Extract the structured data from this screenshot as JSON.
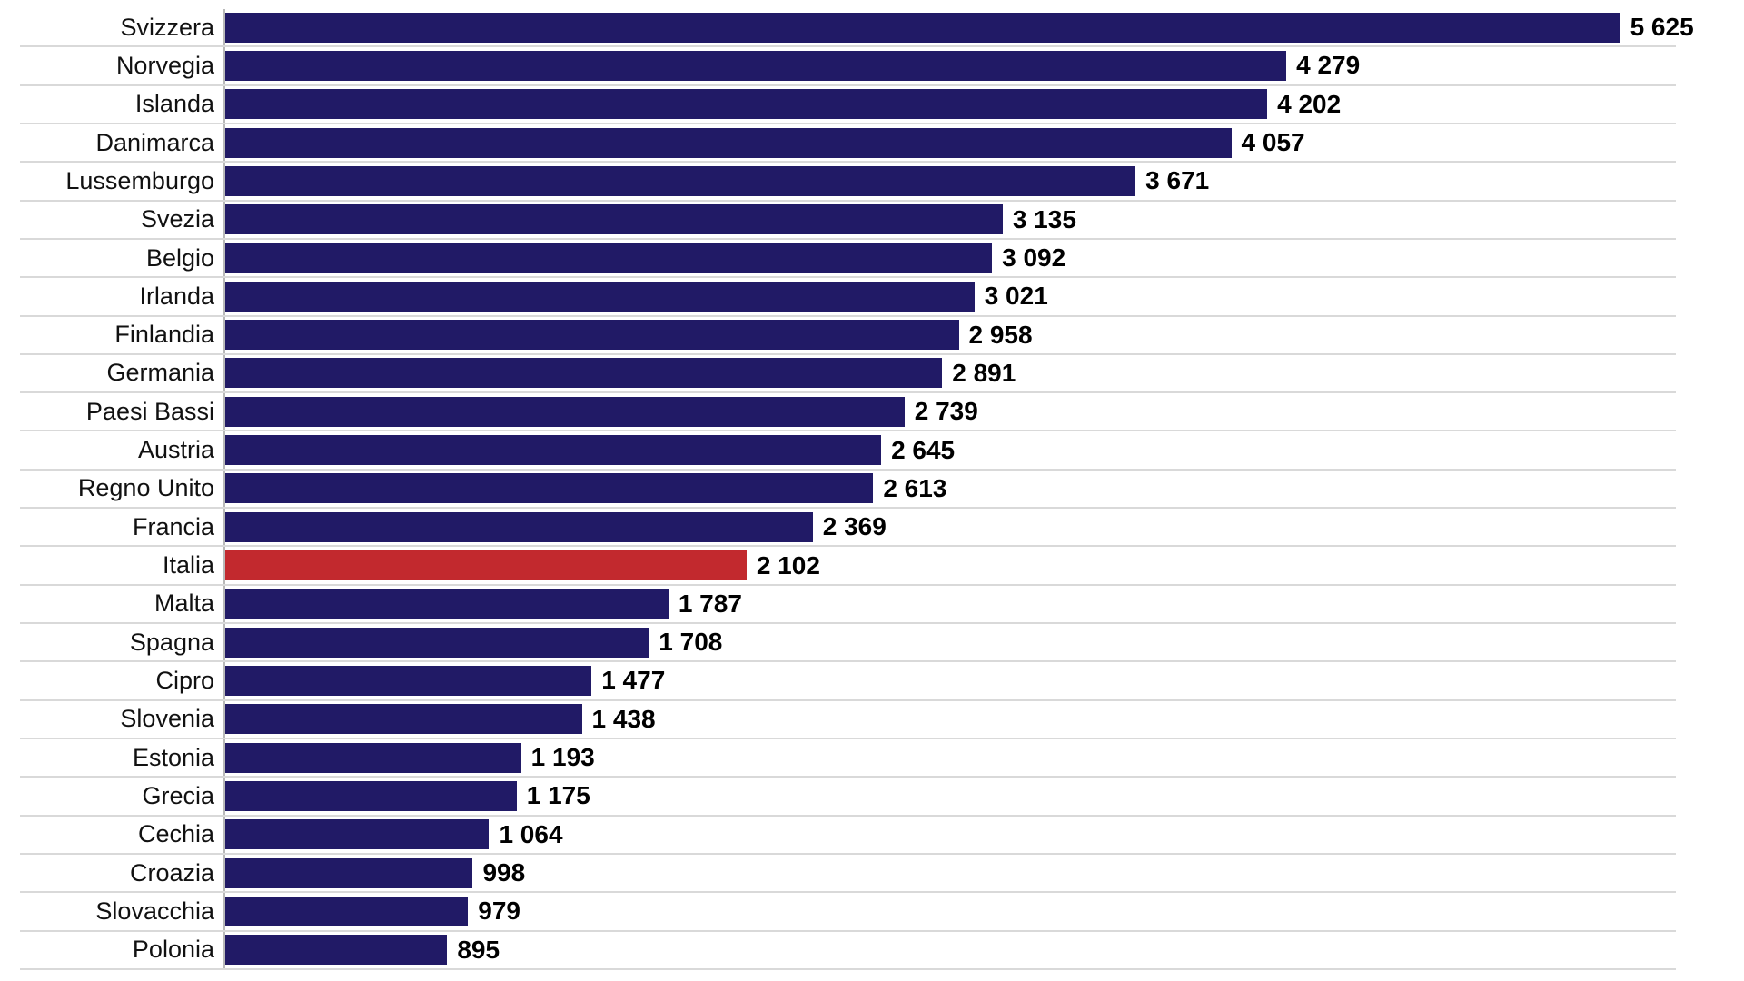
{
  "chart_data": {
    "type": "bar",
    "orientation": "horizontal",
    "grid": true,
    "legend": false,
    "xlim": [
      0,
      5850
    ],
    "categories": [
      "Svizzera",
      "Norvegia",
      "Islanda",
      "Danimarca",
      "Lussemburgo",
      "Svezia",
      "Belgio",
      "Irlanda",
      "Finlandia",
      "Germania",
      "Paesi Bassi",
      "Austria",
      "Regno Unito",
      "Francia",
      "Italia",
      "Malta",
      "Spagna",
      "Cipro",
      "Slovenia",
      "Estonia",
      "Grecia",
      "Cechia",
      "Croazia",
      "Slovacchia",
      "Polonia"
    ],
    "values": [
      5625,
      4279,
      4202,
      4057,
      3671,
      3135,
      3092,
      3021,
      2958,
      2891,
      2739,
      2645,
      2613,
      2369,
      2102,
      1787,
      1708,
      1477,
      1438,
      1193,
      1175,
      1064,
      998,
      979,
      895
    ],
    "value_labels": [
      "5 625",
      "4 279",
      "4 202",
      "4 057",
      "3 671",
      "3 135",
      "3 092",
      "3 021",
      "2 958",
      "2 891",
      "2 739",
      "2 645",
      "2 613",
      "2 369",
      "2 102",
      "1 787",
      "1 708",
      "1 477",
      "1 438",
      "1 193",
      "1 175",
      "1 064",
      "998",
      "979",
      "895"
    ],
    "bar_color": "#211a66",
    "highlight": {
      "category": "Italia",
      "color": "#c2292e"
    }
  },
  "colors": {
    "background": "#ffffff",
    "bar": "#211a66",
    "highlight_bar": "#c2292e",
    "gridline": "#d9d9d9",
    "axis_line": "#b9b9b9",
    "category_text": "#111111",
    "value_text": "#000000"
  }
}
